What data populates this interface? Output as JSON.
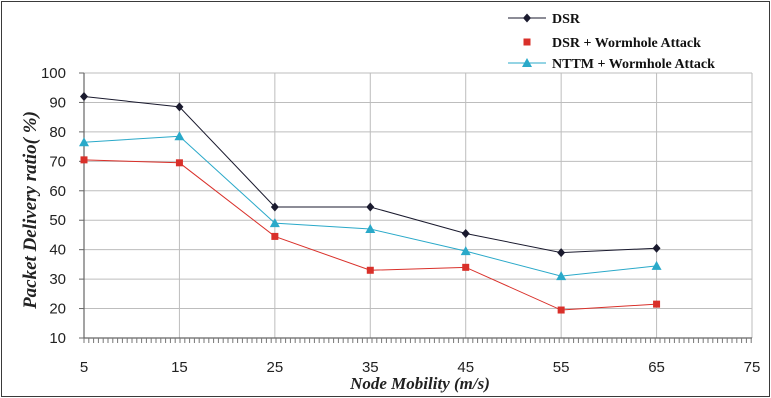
{
  "chart_data": {
    "type": "line",
    "xlabel": "Node Mobility (m/s)",
    "ylabel": "Packet Delivery ratio( %)",
    "xlim": [
      5,
      75
    ],
    "ylim": [
      10,
      100
    ],
    "x_ticks": [
      "5",
      "15",
      "25",
      "35",
      "45",
      "55",
      "65",
      "75"
    ],
    "y_ticks": [
      "10",
      "20",
      "30",
      "40",
      "50",
      "60",
      "70",
      "80",
      "90",
      "100"
    ],
    "grid": true,
    "legend_position": "top-right",
    "x": [
      5,
      15,
      25,
      35,
      45,
      55,
      65
    ],
    "series": [
      {
        "name": "DSR",
        "color": "#1a1a2e",
        "marker": "diamond",
        "values": [
          92,
          88.5,
          54.5,
          54.5,
          45.5,
          39,
          40.5
        ]
      },
      {
        "name": "DSR + Wormhole Attack",
        "color": "#d9302a",
        "marker": "square",
        "values": [
          70.5,
          69.5,
          44.5,
          33,
          34,
          19.5,
          21.5
        ]
      },
      {
        "name": "NTTM + Wormhole Attack",
        "color": "#2aa9c9",
        "marker": "triangle",
        "values": [
          76.5,
          78.5,
          49,
          47,
          39.5,
          31,
          34.5
        ]
      }
    ]
  }
}
